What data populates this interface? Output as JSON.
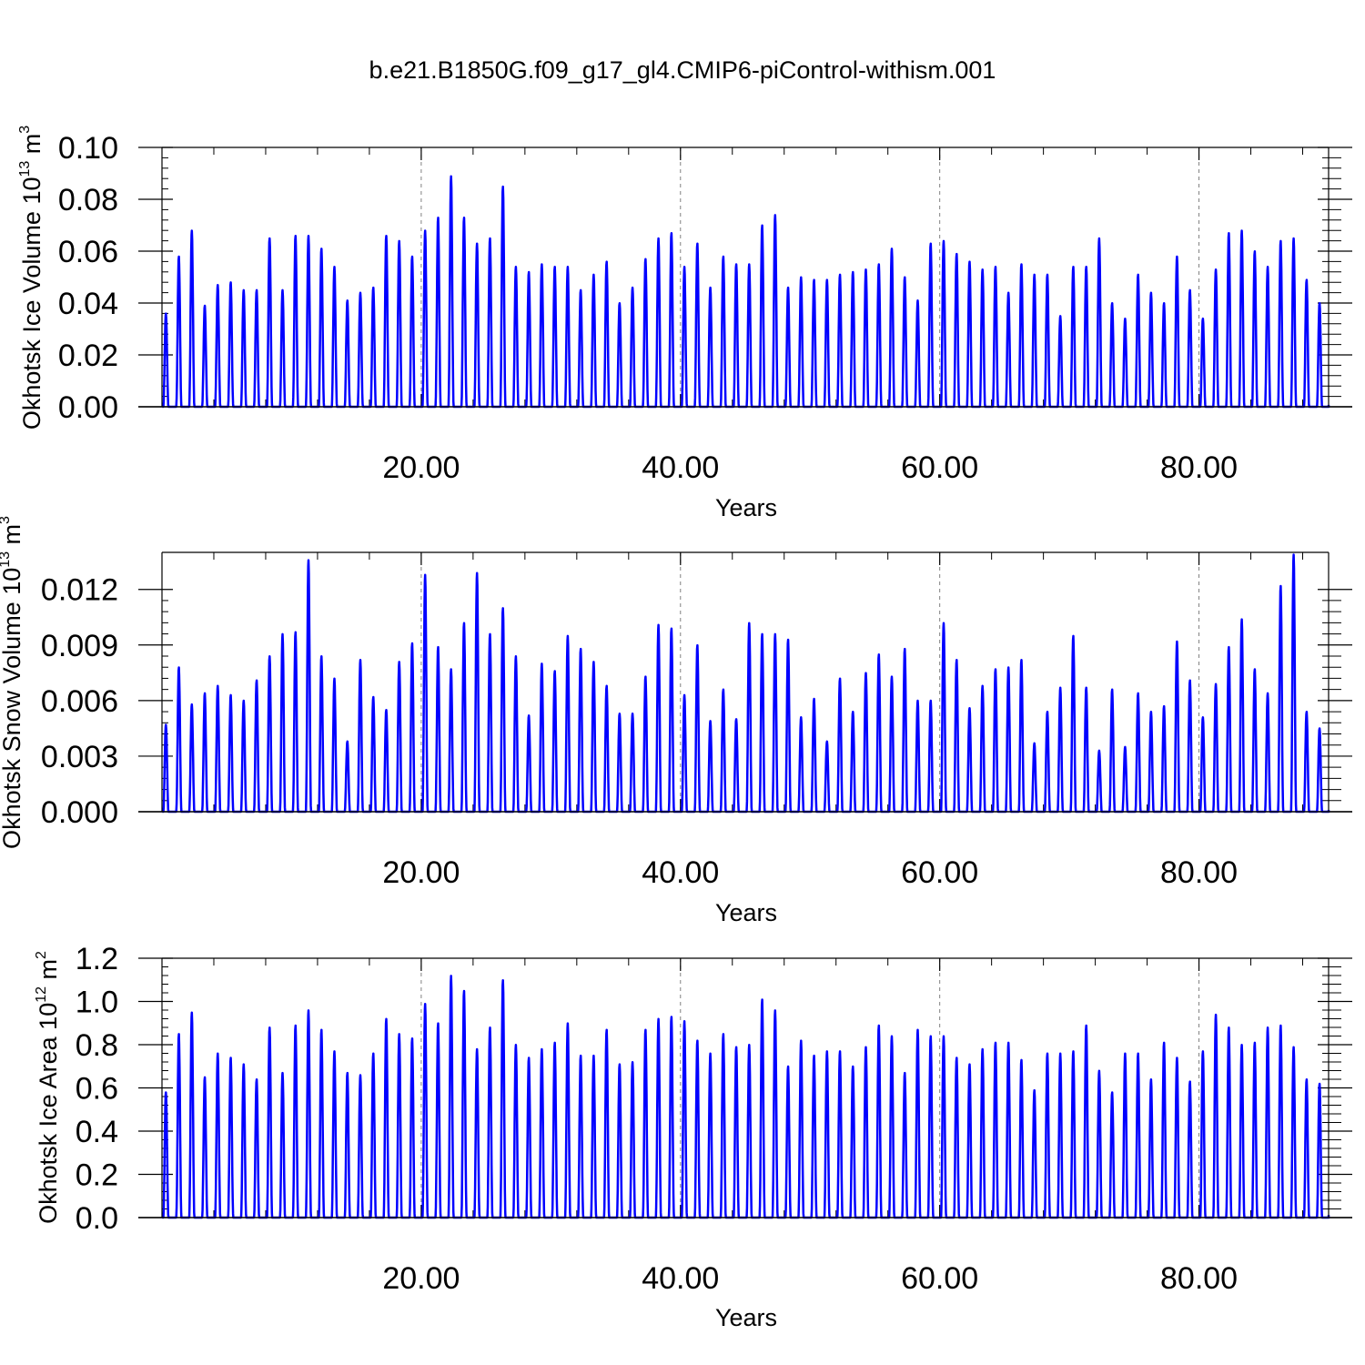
{
  "title": "b.e21.B1850G.f09_g17_gl4.CMIP6-piControl-withism.001",
  "colors": {
    "series": "#0000ff",
    "axis": "#000000",
    "grid": "#808080"
  },
  "chart_data": [
    {
      "type": "line",
      "ylabel": "Okhotsk Ice Volume 10",
      "ylabel_exponent": "13",
      "ylabel_unit": " m",
      "ylabel_unit_exponent": "3",
      "xlabel": "Years",
      "xlim": [
        0,
        90
      ],
      "ylim": [
        0,
        0.1
      ],
      "xticks": [
        20,
        40,
        60,
        80
      ],
      "xtick_labels": [
        "20.00",
        "40.00",
        "60.00",
        "80.00"
      ],
      "yticks": [
        0,
        0.02,
        0.04,
        0.06,
        0.08,
        0.1
      ],
      "ytick_labels": [
        "0.00",
        "0.02",
        "0.04",
        "0.06",
        "0.08",
        "0.10"
      ],
      "series": [
        {
          "peaks": [
            0.036,
            0.058,
            0.068,
            0.039,
            0.047,
            0.048,
            0.045,
            0.045,
            0.065,
            0.045,
            0.066,
            0.066,
            0.061,
            0.054,
            0.041,
            0.044,
            0.046,
            0.066,
            0.064,
            0.058,
            0.068,
            0.073,
            0.089,
            0.073,
            0.063,
            0.065,
            0.085,
            0.054,
            0.052,
            0.055,
            0.054,
            0.054,
            0.045,
            0.051,
            0.056,
            0.04,
            0.046,
            0.057,
            0.065,
            0.067,
            0.054,
            0.063,
            0.046,
            0.058,
            0.055,
            0.055,
            0.07,
            0.074,
            0.046,
            0.05,
            0.049,
            0.049,
            0.051,
            0.052,
            0.053,
            0.055,
            0.061,
            0.05,
            0.041,
            0.063,
            0.064,
            0.059,
            0.056,
            0.053,
            0.054,
            0.044,
            0.055,
            0.051,
            0.051,
            0.035,
            0.054,
            0.054,
            0.065,
            0.04,
            0.034,
            0.051,
            0.044,
            0.04,
            0.058,
            0.045,
            0.034,
            0.053,
            0.067,
            0.068,
            0.06,
            0.054,
            0.064,
            0.065,
            0.049,
            0.04
          ]
        }
      ]
    },
    {
      "type": "line",
      "ylabel": "Okhotsk Snow Volume 10",
      "ylabel_exponent": "13",
      "ylabel_unit": " m",
      "ylabel_unit_exponent": "3",
      "xlabel": "Years",
      "xlim": [
        0,
        90
      ],
      "ylim": [
        0,
        0.014
      ],
      "xticks": [
        20,
        40,
        60,
        80
      ],
      "xtick_labels": [
        "20.00",
        "40.00",
        "60.00",
        "80.00"
      ],
      "yticks": [
        0,
        0.003,
        0.006,
        0.009,
        0.012
      ],
      "ytick_labels": [
        "0.000",
        "0.003",
        "0.006",
        "0.009",
        "0.012"
      ],
      "series": [
        {
          "peaks": [
            0.0047,
            0.0078,
            0.0058,
            0.0064,
            0.0068,
            0.0063,
            0.006,
            0.0071,
            0.0084,
            0.0096,
            0.0097,
            0.0136,
            0.0084,
            0.0072,
            0.0038,
            0.0082,
            0.0062,
            0.0055,
            0.0081,
            0.0091,
            0.0128,
            0.0089,
            0.0077,
            0.0102,
            0.0129,
            0.0096,
            0.011,
            0.0084,
            0.0052,
            0.008,
            0.0076,
            0.0095,
            0.0088,
            0.0081,
            0.0068,
            0.0053,
            0.0053,
            0.0073,
            0.0101,
            0.0099,
            0.0063,
            0.009,
            0.0049,
            0.0066,
            0.005,
            0.0102,
            0.0096,
            0.0096,
            0.0093,
            0.0051,
            0.0061,
            0.0038,
            0.0072,
            0.0054,
            0.0075,
            0.0085,
            0.0073,
            0.0088,
            0.006,
            0.006,
            0.0102,
            0.0082,
            0.0056,
            0.0068,
            0.0077,
            0.0078,
            0.0082,
            0.0037,
            0.0054,
            0.0067,
            0.0095,
            0.0067,
            0.0033,
            0.0066,
            0.0035,
            0.0064,
            0.0054,
            0.0057,
            0.0092,
            0.0071,
            0.0051,
            0.0069,
            0.0089,
            0.0104,
            0.0077,
            0.0064,
            0.0122,
            0.0139,
            0.0054,
            0.0045
          ]
        }
      ]
    },
    {
      "type": "line",
      "ylabel": "Okhotsk Ice Area 10",
      "ylabel_exponent": "12",
      "ylabel_unit": " m",
      "ylabel_unit_exponent": "2",
      "xlabel": "Years",
      "xlim": [
        0,
        90
      ],
      "ylim": [
        0,
        1.2
      ],
      "xticks": [
        20,
        40,
        60,
        80
      ],
      "xtick_labels": [
        "20.00",
        "40.00",
        "60.00",
        "80.00"
      ],
      "yticks": [
        0,
        0.2,
        0.4,
        0.6,
        0.8,
        1.0,
        1.2
      ],
      "ytick_labels": [
        "0.0",
        "0.2",
        "0.4",
        "0.6",
        "0.8",
        "1.0",
        "1.2"
      ],
      "series": [
        {
          "peaks": [
            0.58,
            0.85,
            0.95,
            0.65,
            0.76,
            0.74,
            0.71,
            0.64,
            0.88,
            0.67,
            0.89,
            0.96,
            0.87,
            0.77,
            0.67,
            0.66,
            0.76,
            0.92,
            0.85,
            0.83,
            0.99,
            0.9,
            1.12,
            1.05,
            0.78,
            0.88,
            1.1,
            0.8,
            0.74,
            0.78,
            0.81,
            0.9,
            0.75,
            0.75,
            0.87,
            0.71,
            0.72,
            0.87,
            0.92,
            0.93,
            0.91,
            0.82,
            0.76,
            0.85,
            0.79,
            0.8,
            1.01,
            0.96,
            0.7,
            0.82,
            0.75,
            0.77,
            0.77,
            0.7,
            0.79,
            0.89,
            0.84,
            0.67,
            0.87,
            0.84,
            0.84,
            0.74,
            0.71,
            0.78,
            0.81,
            0.81,
            0.73,
            0.59,
            0.76,
            0.76,
            0.77,
            0.89,
            0.68,
            0.58,
            0.76,
            0.76,
            0.64,
            0.81,
            0.74,
            0.63,
            0.77,
            0.94,
            0.88,
            0.8,
            0.81,
            0.88,
            0.89,
            0.79,
            0.64,
            0.62
          ]
        }
      ]
    }
  ]
}
